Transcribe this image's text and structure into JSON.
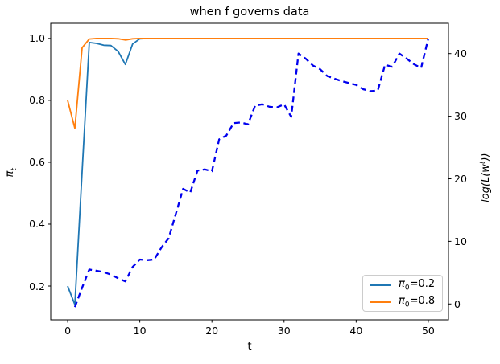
{
  "chart_data": {
    "type": "line",
    "title": "when f governs data",
    "xlabel": "t",
    "ylabel_left": {
      "base": "π",
      "sub": "t"
    },
    "ylabel_right": {
      "pre": "log(L(w",
      "sup": "t",
      "post": "))"
    },
    "background": "#ffffff",
    "grid": false,
    "xlim": [
      -2.35,
      52.8
    ],
    "ylim_left": [
      0.091,
      1.049
    ],
    "ylim_right": [
      -2.53,
      44.84
    ],
    "x_ticks": [
      "0",
      "10",
      "20",
      "30",
      "40",
      "50"
    ],
    "x_tick_values": [
      0,
      10,
      20,
      30,
      40,
      50
    ],
    "left_ticks": [
      "0.2",
      "0.4",
      "0.6",
      "0.8",
      "1.0"
    ],
    "left_tick_values": [
      0.2,
      0.4,
      0.6,
      0.8,
      1.0
    ],
    "right_ticks": [
      "0",
      "10",
      "20",
      "30",
      "40"
    ],
    "right_tick_values": [
      0,
      10,
      20,
      30,
      40
    ],
    "legend": {
      "position": "lower right",
      "entries": [
        {
          "label_sym": "π",
          "label_sub": "0",
          "label_rest": "=0.2",
          "color": "#1f77b4",
          "style": "solid"
        },
        {
          "label_sym": "π",
          "label_sub": "0",
          "label_rest": "=0.8",
          "color": "#ff7f0e",
          "style": "solid"
        }
      ]
    },
    "series": [
      {
        "name": "pi0=0.2",
        "axis": "left",
        "color": "#1f77b4",
        "style": "solid",
        "x": [
          0,
          1,
          2,
          3,
          4,
          5,
          6,
          7,
          8,
          9,
          10,
          11,
          12,
          13,
          14,
          15,
          16,
          17,
          18,
          19,
          20,
          21,
          22,
          23,
          24,
          25,
          26,
          27,
          28,
          29,
          30,
          31,
          32,
          33,
          34,
          35,
          36,
          37,
          38,
          39,
          40,
          41,
          42,
          43,
          44,
          45,
          46,
          47,
          48,
          49,
          50
        ],
        "y": [
          0.2,
          0.14,
          0.57,
          0.987,
          0.984,
          0.978,
          0.977,
          0.958,
          0.916,
          0.982,
          0.999,
          1,
          1,
          1,
          1,
          1,
          1,
          1,
          1,
          1,
          1,
          1,
          1,
          1,
          1,
          1,
          1,
          1,
          1,
          1,
          1,
          1,
          1,
          1,
          1,
          1,
          1,
          1,
          1,
          1,
          1,
          1,
          1,
          1,
          1,
          1,
          1,
          1,
          1,
          1,
          1
        ]
      },
      {
        "name": "pi0=0.8",
        "axis": "left",
        "color": "#ff7f0e",
        "style": "solid",
        "x": [
          0,
          1,
          2,
          3,
          4,
          5,
          6,
          7,
          8,
          9,
          10,
          11,
          12,
          13,
          14,
          15,
          16,
          17,
          18,
          19,
          20,
          21,
          22,
          23,
          24,
          25,
          26,
          27,
          28,
          29,
          30,
          31,
          32,
          33,
          34,
          35,
          36,
          37,
          38,
          39,
          40,
          41,
          42,
          43,
          44,
          45,
          46,
          47,
          48,
          49,
          50
        ],
        "y": [
          0.8,
          0.71,
          0.97,
          0.998,
          1,
          1,
          1,
          0.999,
          0.995,
          0.999,
          1,
          1,
          1,
          1,
          1,
          1,
          1,
          1,
          1,
          1,
          1,
          1,
          1,
          1,
          1,
          1,
          1,
          1,
          1,
          1,
          1,
          1,
          1,
          1,
          1,
          1,
          1,
          1,
          1,
          1,
          1,
          1,
          1,
          1,
          1,
          1,
          1,
          1,
          1,
          1,
          1
        ]
      },
      {
        "name": "log-likelihood",
        "axis": "right",
        "color": "#0000ee",
        "style": "dashed",
        "x": [
          1,
          2,
          3,
          4,
          5,
          6,
          7,
          8,
          9,
          10,
          11,
          12,
          13,
          14,
          15,
          16,
          17,
          18,
          19,
          20,
          21,
          22,
          23,
          24,
          25,
          26,
          27,
          28,
          29,
          30,
          31,
          32,
          33,
          34,
          35,
          36,
          37,
          38,
          39,
          40,
          41,
          42,
          43,
          44,
          45,
          46,
          47,
          48,
          49,
          50
        ],
        "y": [
          -0.5,
          2.6,
          5.5,
          5.3,
          5.1,
          4.7,
          4.1,
          3.6,
          5.9,
          7.1,
          7.0,
          7.1,
          9.0,
          10.5,
          14.4,
          18.4,
          17.8,
          21.3,
          21.5,
          21.2,
          26.3,
          26.9,
          28.9,
          29.0,
          28.7,
          31.7,
          31.9,
          31.5,
          31.4,
          31.9,
          29.9,
          40.0,
          39.2,
          38.1,
          37.5,
          36.4,
          36.0,
          35.6,
          35.3,
          35.0,
          34.3,
          34.0,
          34.1,
          38.2,
          37.9,
          40.0,
          39.2,
          38.3,
          37.7,
          42.4
        ]
      }
    ]
  }
}
